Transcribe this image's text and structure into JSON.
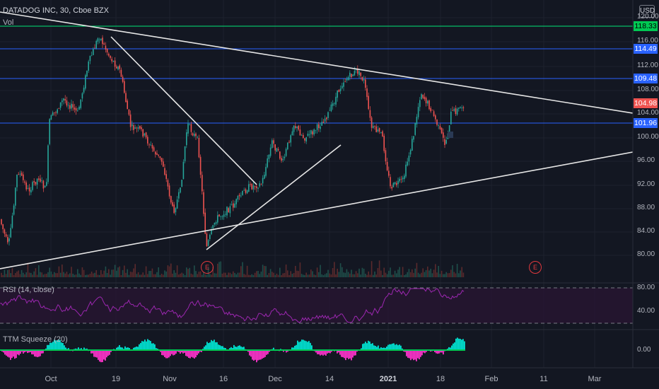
{
  "header": {
    "symbol_line": "DATADOG INC, 30, Cboe BZX",
    "volume_label": "Vol",
    "currency": "USD"
  },
  "price_axis": {
    "ticks": [
      "120.00",
      "116.00",
      "112.00",
      "108.00",
      "104.00",
      "100.00",
      "96.00",
      "92.00",
      "88.00",
      "84.00",
      "80.00"
    ]
  },
  "level_labels": [
    {
      "name": "resistance-118",
      "value": "118.33",
      "color": "#00c853",
      "text_color": "#000000"
    },
    {
      "name": "level-114",
      "value": "114.49",
      "color": "#2962ff",
      "text_color": "#ffffff"
    },
    {
      "name": "level-109",
      "value": "109.48",
      "color": "#2962ff",
      "text_color": "#ffffff"
    },
    {
      "name": "last-price",
      "value": "104.98",
      "color": "#ef5350",
      "text_color": "#ffffff"
    },
    {
      "name": "level-101",
      "value": "101.96",
      "color": "#2962ff",
      "text_color": "#ffffff"
    }
  ],
  "time_axis": {
    "labels": [
      "Oct",
      "19",
      "Nov",
      "16",
      "Dec",
      "14",
      "2021",
      "18",
      "Feb",
      "11",
      "Mar"
    ]
  },
  "earnings_marker": "E",
  "rsi": {
    "title": "RSI (14, close)",
    "ticks": [
      "80.00",
      "40.00"
    ]
  },
  "ttm": {
    "title": "TTM Squeeze (20)",
    "tick": "0.00"
  },
  "colors": {
    "background": "#131722",
    "up": "#26a69a",
    "down": "#ef5350",
    "rsi_line": "#9c27b0",
    "squeeze_up": "#00e5d4",
    "squeeze_down": "#ff33cc"
  }
}
